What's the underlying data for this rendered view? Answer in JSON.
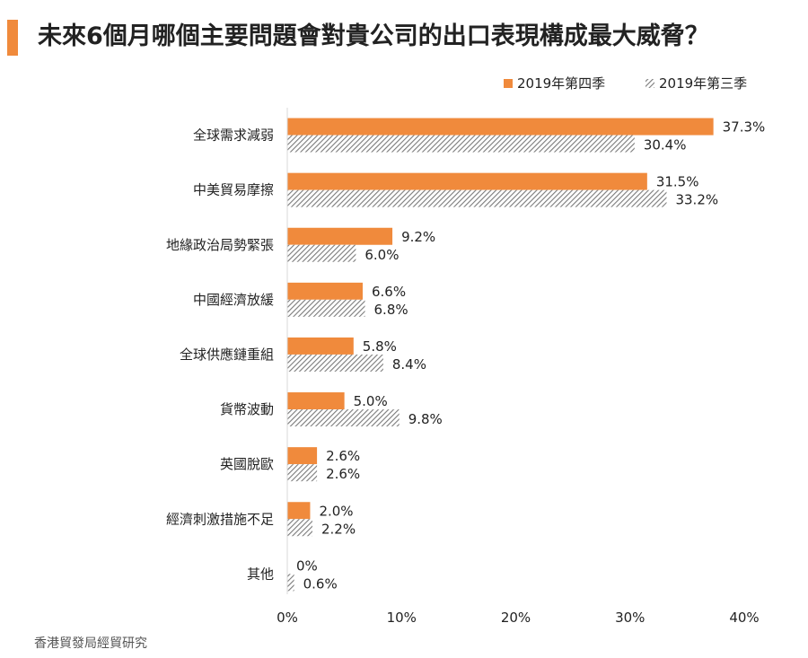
{
  "header": {
    "title": "未來6個月哪個主要問題會對貴公司的出口表現構成最大威脅？"
  },
  "footer": {
    "source": "香港貿發局經貿研究"
  },
  "colors": {
    "accent": "#f08a3c",
    "series_q4": "#f08a3c",
    "series_q3_hatch": "#7a7a7a"
  },
  "chart_data": {
    "type": "bar",
    "orientation": "horizontal",
    "title": "未來6個月哪個主要問題會對貴公司的出口表現構成最大威脅？",
    "categories": [
      "全球需求減弱",
      "中美貿易摩擦",
      "地緣政治局勢緊張",
      "中國經濟放緩",
      "全球供應鏈重組",
      "貨幣波動",
      "英國脫歐",
      "經濟刺激措施不足",
      "其他"
    ],
    "series": [
      {
        "name": "2019年第四季",
        "values": [
          37.3,
          31.5,
          9.2,
          6.6,
          5.8,
          5.0,
          2.6,
          2.0,
          0
        ],
        "labels": [
          "37.3%",
          "31.5%",
          "9.2%",
          "6.6%",
          "5.8%",
          "5.0%",
          "2.6%",
          "2.0%",
          "0%"
        ]
      },
      {
        "name": "2019年第三季",
        "values": [
          30.4,
          33.2,
          6.0,
          6.8,
          8.4,
          9.8,
          2.6,
          2.2,
          0.6
        ],
        "labels": [
          "30.4%",
          "33.2%",
          "6.0%",
          "6.8%",
          "8.4%",
          "9.8%",
          "2.6%",
          "2.2%",
          "0.6%"
        ]
      }
    ],
    "xlim": [
      0,
      40
    ],
    "xticks": [
      0,
      10,
      20,
      30,
      40
    ],
    "xtick_labels": [
      "0%",
      "10%",
      "20%",
      "30%",
      "40%"
    ],
    "xlabel": "",
    "ylabel": "",
    "legend": "top-right",
    "grid": false
  }
}
